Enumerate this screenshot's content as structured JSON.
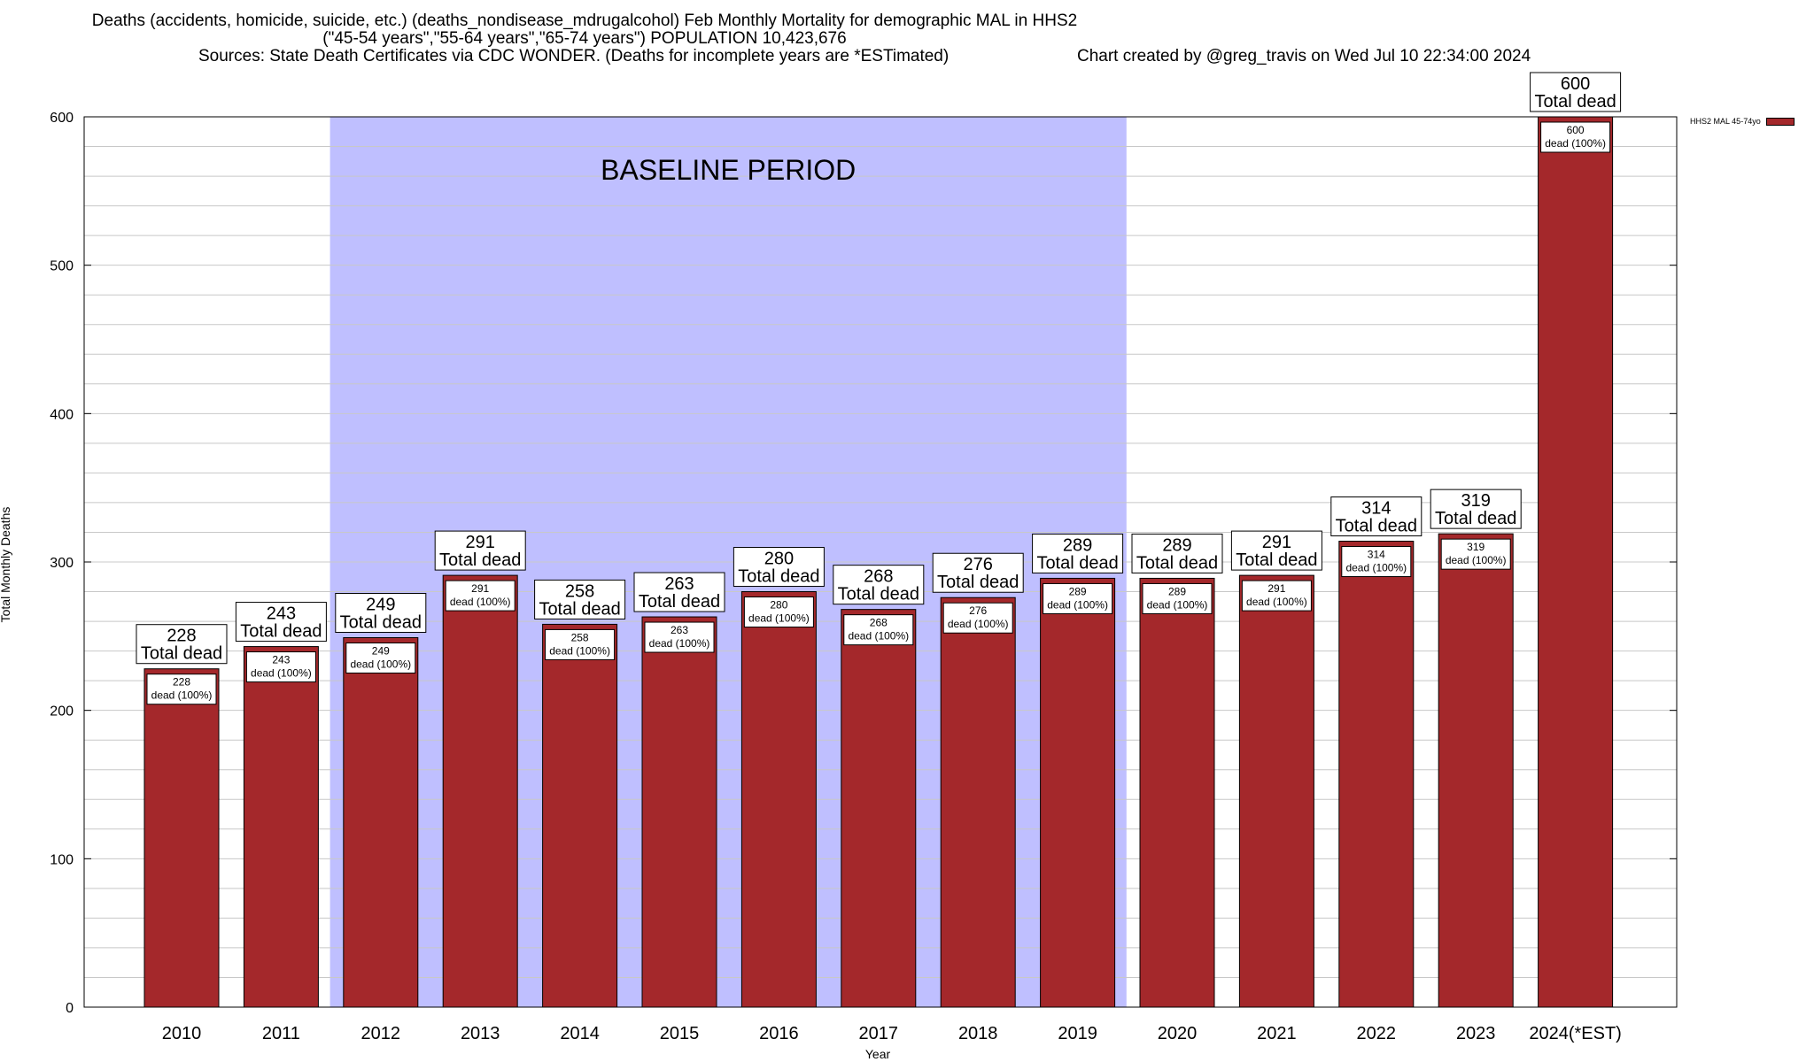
{
  "header": {
    "title_line1": "Deaths (accidents, homicide, suicide, etc.) (deaths_nondisease_mdrugalcohol) Feb Monthly Mortality for demographic MAL in HHS2",
    "title_line2": "(\"45-54 years\",\"55-64 years\",\"65-74 years\") POPULATION 10,423,676",
    "sources": "Sources: State Death Certificates via CDC WONDER. (Deaths for incomplete years are *ESTimated)",
    "credit": "Chart created by @greg_travis on Wed Jul 10 22:34:00 2024"
  },
  "legend": {
    "label": "HHS2 MAL 45-74yo"
  },
  "colors": {
    "bar": "#a4282b",
    "baseline": "#bfbfff",
    "grid": "#c8c8c8"
  },
  "chart_data": {
    "type": "bar",
    "title": "Deaths (accidents, homicide, suicide, etc.) (deaths_nondisease_mdrugalcohol) Feb Monthly Mortality for demographic MAL in HHS2",
    "xlabel": "Year",
    "ylabel": "Total Monthly Deaths",
    "ylim": [
      0,
      600
    ],
    "yticks": [
      0,
      100,
      200,
      300,
      400,
      500,
      600
    ],
    "grid": true,
    "legend_position": "top-right",
    "categories": [
      "2010",
      "2011",
      "2012",
      "2013",
      "2014",
      "2015",
      "2016",
      "2017",
      "2018",
      "2019",
      "2020",
      "2021",
      "2022",
      "2023",
      "2024(*EST)"
    ],
    "series": [
      {
        "name": "HHS2 MAL 45-74yo",
        "values": [
          228,
          243,
          249,
          291,
          258,
          263,
          280,
          268,
          276,
          289,
          289,
          291,
          314,
          319,
          600
        ]
      }
    ],
    "total_label": "Total dead",
    "inner_label": "dead (100%)",
    "baseline_period": {
      "label": "BASELINE PERIOD",
      "from": "2012",
      "to": "2019"
    }
  }
}
